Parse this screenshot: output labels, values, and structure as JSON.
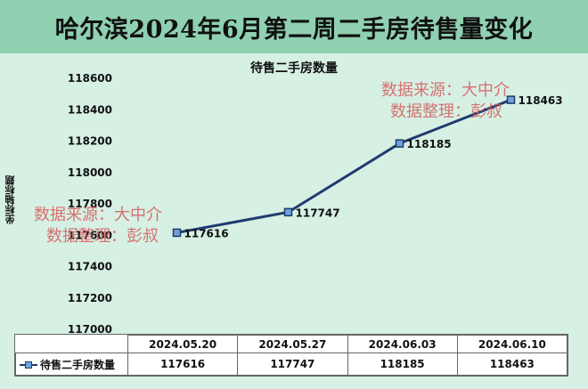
{
  "banner": {
    "title": "哈尔滨2024年6月第二周二手房待售量变化"
  },
  "watermarks": [
    {
      "line1": "数据来源：大中介",
      "line2": "数据整理：彭叔"
    },
    {
      "line1": "数据来源：大中介",
      "line2": "数据整理：彭叔"
    }
  ],
  "colors": {
    "banner": "#8fd1b1",
    "background": "#d6f0e4",
    "line": "#1f3b6f",
    "marker": "#6fa3d8",
    "watermark": "#d85b5b"
  },
  "chart_data": {
    "type": "line",
    "title": "待售二手房数量",
    "ylabel": "坐标轴标题",
    "xlabel": "",
    "ylim": [
      117000,
      118600
    ],
    "ytick_step": 200,
    "yticks": [
      "117000",
      "117200",
      "117400",
      "117600",
      "117800",
      "118000",
      "118200",
      "118400",
      "118600"
    ],
    "categories": [
      "2024.05.20",
      "2024.05.27",
      "2024.06.03",
      "2024.06.10"
    ],
    "series": [
      {
        "name": "待售二手房数量",
        "values": [
          117616,
          117747,
          118185,
          118463
        ]
      }
    ],
    "data_labels": [
      "117616",
      "117747",
      "118185",
      "118463"
    ],
    "data_table": true,
    "grid": false,
    "legend": "data-table"
  }
}
